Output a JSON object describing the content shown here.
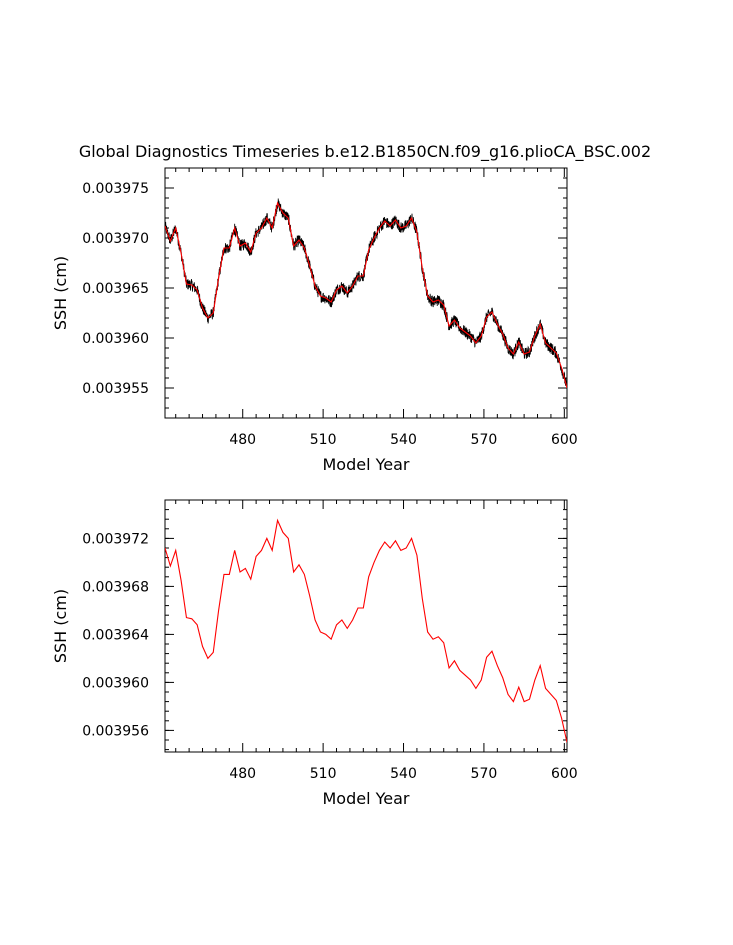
{
  "title": "Global Diagnostics Timeseries b.e12.B1850CN.f09_g16.plioCA_BSC.002",
  "chart_data": [
    {
      "type": "line",
      "xlabel": "Model Year",
      "ylabel": "SSH (cm)",
      "xlim": [
        451,
        601
      ],
      "ylim": [
        0.003952,
        0.003977
      ],
      "xticks": [
        480,
        510,
        540,
        570,
        600
      ],
      "xtick_labels": [
        "480",
        "510",
        "540",
        "570",
        "600"
      ],
      "yticks": [
        0.003955,
        0.00396,
        0.003965,
        0.00397,
        0.003975
      ],
      "ytick_labels": [
        "0.003955",
        "0.003960",
        "0.003965",
        "0.003970",
        "0.003975"
      ],
      "series": [
        {
          "color": "#000000",
          "kind": "monthly",
          "noise_amplitude": 6e-07
        },
        {
          "color": "#ff0000",
          "kind": "annual"
        }
      ]
    },
    {
      "type": "line",
      "xlabel": "Model Year",
      "ylabel": "SSH (cm)",
      "xlim": [
        451,
        601
      ],
      "ylim": [
        0.0039542,
        0.0039752
      ],
      "xticks": [
        480,
        510,
        540,
        570,
        600
      ],
      "xtick_labels": [
        "480",
        "510",
        "540",
        "570",
        "600"
      ],
      "yticks": [
        0.003956,
        0.00396,
        0.003964,
        0.003968,
        0.003972
      ],
      "ytick_labels": [
        "0.003956",
        "0.003960",
        "0.003964",
        "0.003968",
        "0.003972"
      ],
      "series": [
        {
          "color": "#ff0000",
          "kind": "annual"
        }
      ]
    }
  ],
  "annual_series": {
    "x": [
      451,
      453,
      455,
      457,
      459,
      461,
      463,
      465,
      467,
      469,
      471,
      473,
      475,
      477,
      479,
      481,
      483,
      485,
      487,
      489,
      491,
      493,
      495,
      497,
      499,
      501,
      503,
      505,
      507,
      509,
      511,
      513,
      515,
      517,
      519,
      521,
      523,
      525,
      527,
      529,
      531,
      533,
      535,
      537,
      539,
      541,
      543,
      545,
      547,
      549,
      551,
      553,
      555,
      557,
      559,
      561,
      563,
      565,
      567,
      569,
      571,
      573,
      575,
      577,
      579,
      581,
      583,
      585,
      587,
      589,
      591,
      593,
      595,
      597,
      599,
      601
    ],
    "y": [
      0.0039712,
      0.0039697,
      0.003971,
      0.0039685,
      0.0039654,
      0.0039653,
      0.0039648,
      0.003963,
      0.003962,
      0.0039625,
      0.003966,
      0.003969,
      0.003969,
      0.003971,
      0.0039692,
      0.0039695,
      0.0039686,
      0.0039705,
      0.003971,
      0.003972,
      0.003971,
      0.0039735,
      0.0039725,
      0.003972,
      0.0039692,
      0.0039698,
      0.003969,
      0.0039672,
      0.0039652,
      0.0039642,
      0.003964,
      0.0039636,
      0.0039648,
      0.0039652,
      0.0039645,
      0.0039652,
      0.0039662,
      0.0039662,
      0.0039688,
      0.00397,
      0.003971,
      0.0039717,
      0.0039712,
      0.0039718,
      0.003971,
      0.0039712,
      0.003972,
      0.0039706,
      0.003967,
      0.0039642,
      0.0039636,
      0.0039638,
      0.0039633,
      0.0039612,
      0.0039618,
      0.003961,
      0.0039606,
      0.0039602,
      0.0039595,
      0.0039602,
      0.0039621,
      0.0039626,
      0.0039614,
      0.0039604,
      0.003959,
      0.0039584,
      0.0039596,
      0.0039584,
      0.0039586,
      0.0039602,
      0.0039614,
      0.0039595,
      0.003959,
      0.0039585,
      0.003957,
      0.003955
    ]
  }
}
